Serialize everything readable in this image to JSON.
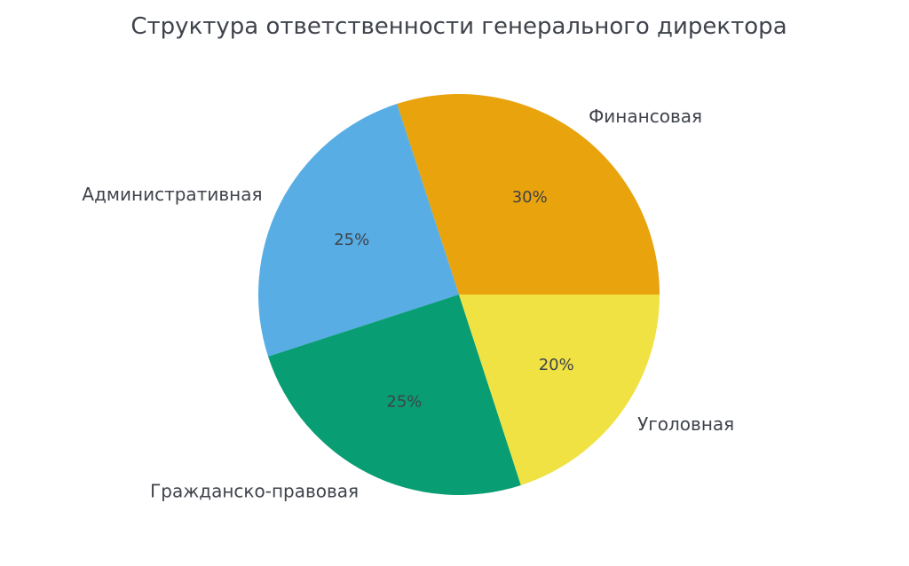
{
  "chart_data": {
    "type": "pie",
    "title": "Структура ответственности генерального директора",
    "slices": [
      {
        "label": "Финансовая",
        "value": 30,
        "pct_label": "30%",
        "color": "#e8a30d"
      },
      {
        "label": "Административная",
        "value": 25,
        "pct_label": "25%",
        "color": "#57ade4"
      },
      {
        "label": "Гражданско-правовая",
        "value": 25,
        "pct_label": "25%",
        "color": "#089d72"
      },
      {
        "label": "Уголовная",
        "value": 20,
        "pct_label": "20%",
        "color": "#f0e243"
      }
    ],
    "start_angle_deg": 0,
    "counterclockwise": true,
    "pct_distance": 0.6,
    "label_distance": 1.1,
    "legend": "none",
    "grid": "off",
    "text_color": "#3f434b",
    "background": "#ffffff"
  }
}
